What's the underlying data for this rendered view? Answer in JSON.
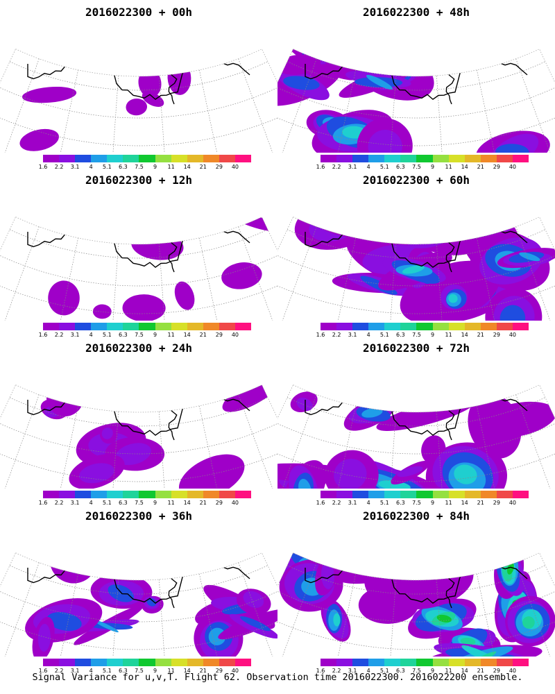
{
  "panels": [
    {
      "title": "2016022300 + 00h",
      "intensity": 0.05
    },
    {
      "title": "2016022300 + 48h",
      "intensity": 0.45
    },
    {
      "title": "2016022300 + 12h",
      "intensity": 0.1
    },
    {
      "title": "2016022300 + 60h",
      "intensity": 0.55
    },
    {
      "title": "2016022300 + 24h",
      "intensity": 0.22
    },
    {
      "title": "2016022300 + 72h",
      "intensity": 0.65
    },
    {
      "title": "2016022300 + 36h",
      "intensity": 0.35
    },
    {
      "title": "2016022300 + 84h",
      "intensity": 0.75
    }
  ],
  "colorbar": {
    "labels": [
      "1.6",
      "2.2",
      "3.1",
      "4",
      "5.1",
      "6.3",
      "7.5",
      "9",
      "11",
      "14",
      "21",
      "29",
      "40"
    ],
    "colors": [
      "#9f00c8",
      "#8a0fe0",
      "#1f4de0",
      "#1f9ee8",
      "#1fcfcf",
      "#1fd49a",
      "#10c830",
      "#95e040",
      "#d7e028",
      "#e4b828",
      "#f08828",
      "#f04848",
      "#ff1080"
    ]
  },
  "footer": "Signal Variance for u,v,T. Flight 62. Observation time 2016022300. 2016022200 ensemble."
}
